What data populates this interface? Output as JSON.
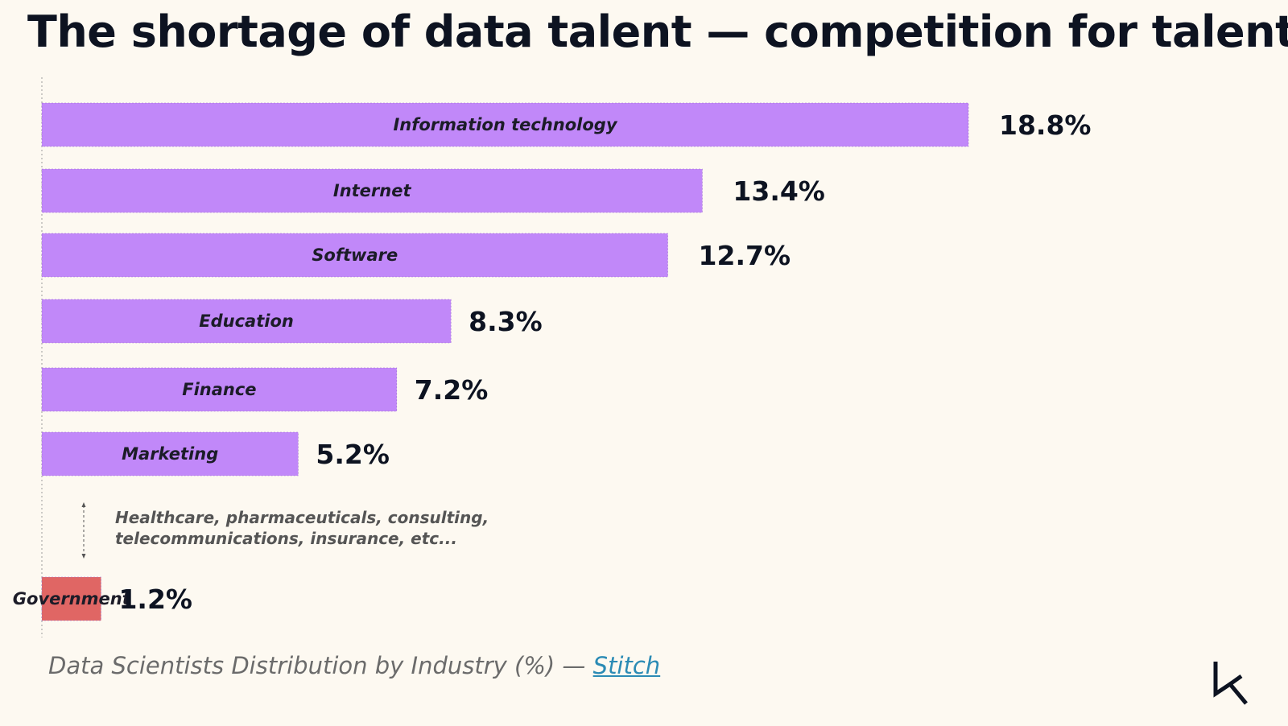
{
  "title": "The shortage of data talent — competition for talent",
  "note": {
    "line1": "Healthcare, pharmaceuticals, consulting,",
    "line2": "telecommunications, insurance, etc..."
  },
  "caption": {
    "text": "Data Scientists Distribution by Industry (%) — ",
    "link": "Stitch"
  },
  "colors": {
    "bar": "#c188f9",
    "highlight_bar": "#e06664",
    "highlight_value": "#f5541e",
    "value": "#0d1321"
  },
  "logo_icon": "datacamp-logo-icon",
  "chart_data": {
    "type": "bar",
    "orientation": "horizontal",
    "title": "The shortage of data talent — competition for talent",
    "categories": [
      "Information technology",
      "Internet",
      "Software",
      "Education",
      "Finance",
      "Marketing",
      "Government"
    ],
    "values": [
      18.8,
      13.4,
      12.7,
      8.3,
      7.2,
      5.2,
      1.2
    ],
    "value_labels": [
      "18.8%",
      "13.4%",
      "12.7%",
      "8.3%",
      "7.2%",
      "5.2%",
      "1.2%"
    ],
    "highlight": [
      "Government"
    ],
    "xlim": [
      0,
      18.8
    ],
    "grid": false,
    "legend": "none"
  }
}
